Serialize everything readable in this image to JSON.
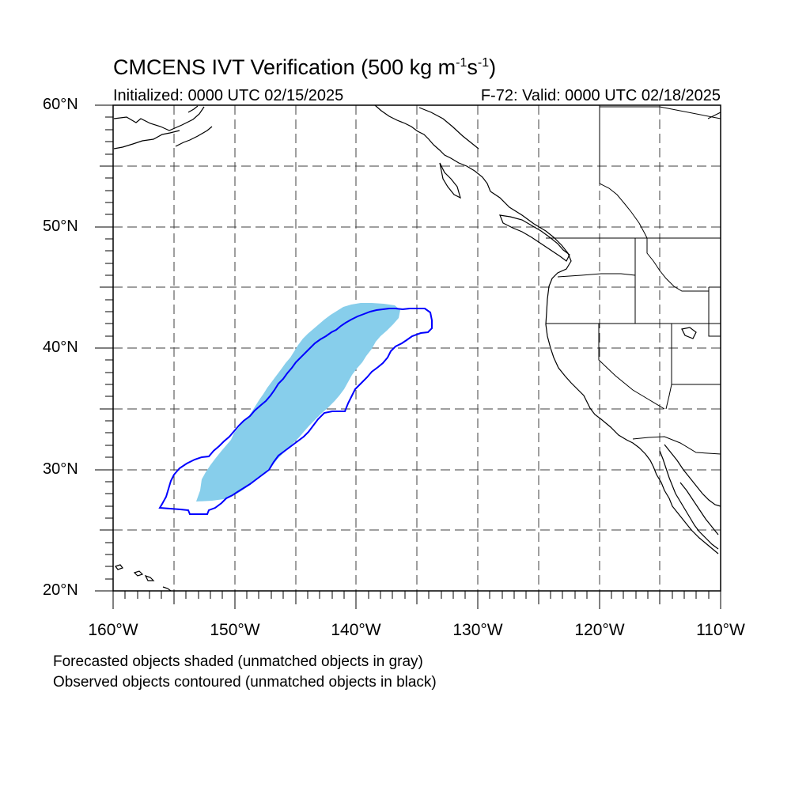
{
  "title": {
    "main": "CMCENS IVT Verification (500 kg m",
    "sup1": "-1",
    "mid": "s",
    "sup2": "-1",
    "end": ")"
  },
  "subtitle_left": "Initialized: 0000 UTC 02/15/2025",
  "subtitle_right": "F-72: Valid: 0000 UTC 02/18/2025",
  "lat_labels": [
    "60°N",
    "50°N",
    "40°N",
    "30°N",
    "20°N"
  ],
  "lon_labels": [
    "160°W",
    "150°W",
    "140°W",
    "130°W",
    "120°W",
    "110°W"
  ],
  "footnotes": [
    "Forecasted objects shaded (unmatched objects in gray)",
    "Observed objects contoured (unmatched objects in black)"
  ],
  "map": {
    "lon_range": [
      -160,
      -110
    ],
    "lat_range": [
      20,
      60
    ],
    "grid_step_deg": 5,
    "colors": {
      "forecast_fill": "#87ceeb",
      "observed_contour": "#0000ff",
      "coast": "#000000",
      "grid": "#000000"
    }
  }
}
